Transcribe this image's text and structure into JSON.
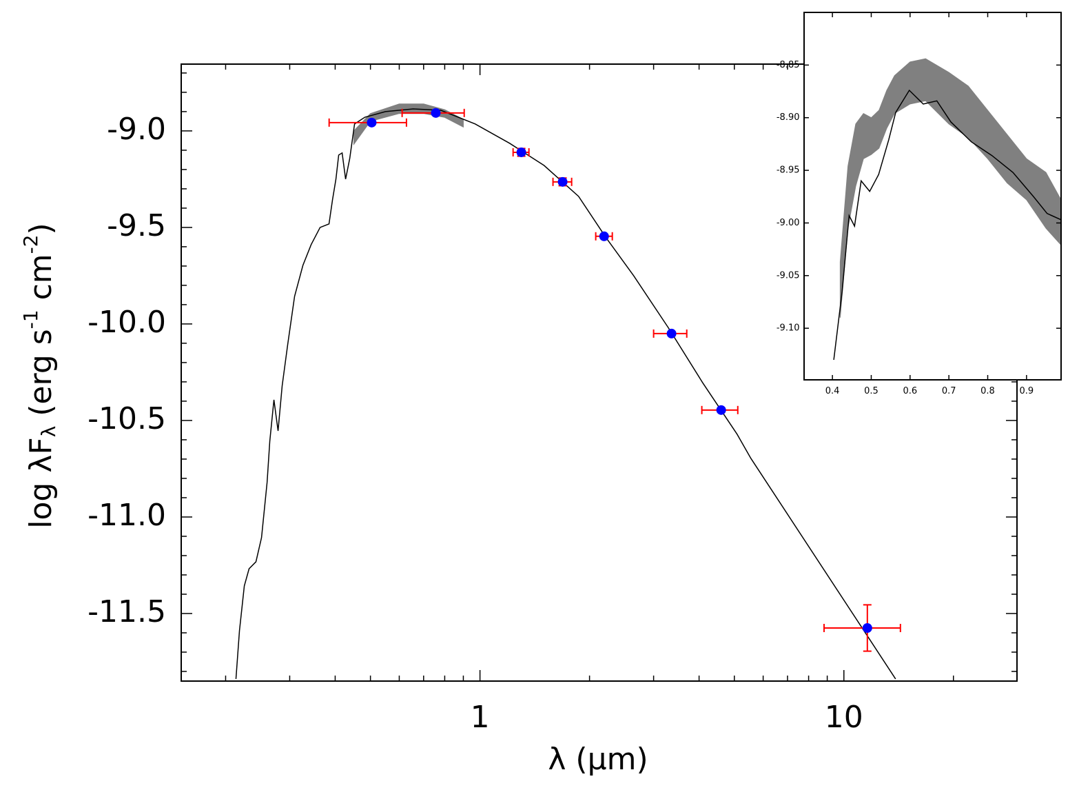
{
  "chart_data": [
    {
      "type": "scatter",
      "xlabel": "λ (μm)",
      "ylabel": [
        "log λF",
        "λ",
        " (erg s",
        "-1",
        " cm",
        "-2",
        ")"
      ],
      "log_x": true,
      "xlim": [
        0.151,
        29.9
      ],
      "ylim": [
        -11.85,
        -8.654
      ],
      "xticks": [
        1,
        10
      ],
      "xminorticks": [
        0.2,
        0.3,
        0.4,
        0.5,
        0.6,
        0.7,
        0.8,
        0.9,
        2,
        3,
        4,
        5,
        6,
        7,
        8,
        9,
        20
      ],
      "yticks": [
        {
          "value": -9,
          "label": "-9.0"
        },
        -9.5,
        {
          "value": -10,
          "label": "-10.0"
        },
        -10.5,
        {
          "value": -11,
          "label": "-11.0"
        },
        -11.5
      ],
      "yminorticks": [
        -8.7,
        -8.8,
        -8.9,
        -9.1,
        -9.2,
        -9.3,
        -9.4,
        -9.6,
        -9.7,
        -9.8,
        -9.9,
        -10.1,
        -10.2,
        -10.3,
        -10.4,
        -10.6,
        -10.7,
        -10.8,
        -10.9,
        -11.1,
        -11.2,
        -11.3,
        -11.4,
        -11.6,
        -11.7,
        -11.8
      ],
      "band": {
        "color": "#808080",
        "x": [
          0.45,
          0.5,
          0.6,
          0.7,
          0.8,
          0.9
        ],
        "lower": [
          -9.07,
          -8.95,
          -8.91,
          -8.91,
          -8.93,
          -8.98
        ],
        "upper": [
          -9.0,
          -8.91,
          -8.86,
          -8.86,
          -8.89,
          -8.94
        ]
      },
      "model": {
        "color": "#000000",
        "x": [
          0.2135,
          0.2183,
          0.2251,
          0.232,
          0.2423,
          0.251,
          0.26,
          0.2645,
          0.2715,
          0.2787,
          0.286,
          0.2962,
          0.3094,
          0.3262,
          0.3436,
          0.3636,
          0.3847,
          0.3933,
          0.4019,
          0.409,
          0.418,
          0.4273,
          0.4386,
          0.4522,
          0.4828,
          0.55,
          0.6551,
          0.78,
          0.9699,
          1.206,
          1.5,
          1.866,
          2.222,
          2.644,
          3.289,
          4.09,
          5.087,
          5.55,
          13.87
        ],
        "values": [
          -11.839,
          -11.589,
          -11.357,
          -11.268,
          -11.232,
          -11.107,
          -10.821,
          -10.607,
          -10.393,
          -10.554,
          -10.321,
          -10.107,
          -9.857,
          -9.696,
          -9.589,
          -9.5,
          -9.482,
          -9.357,
          -9.25,
          -9.125,
          -9.114,
          -9.25,
          -9.143,
          -8.964,
          -8.929,
          -8.9,
          -8.886,
          -8.893,
          -8.964,
          -9.064,
          -9.179,
          -9.339,
          -9.554,
          -9.75,
          -10.018,
          -10.304,
          -10.571,
          -10.696,
          -11.839
        ]
      },
      "points": {
        "color": "#0000ff",
        "error_color": "#ff0000",
        "x": [
          0.504,
          0.756,
          1.299,
          1.687,
          2.193,
          3.36,
          4.6,
          11.6
        ],
        "values": [
          -8.957,
          -8.907,
          -9.111,
          -9.264,
          -9.546,
          -10.05,
          -10.446,
          -11.575
        ],
        "xmin": [
          0.385,
          0.611,
          1.233,
          1.587,
          2.08,
          3.0,
          4.07,
          8.82
        ],
        "xmax": [
          0.628,
          0.905,
          1.363,
          1.786,
          2.31,
          3.7,
          5.11,
          14.3
        ],
        "yerr": [
          0.01,
          0.01,
          0.02,
          0.02,
          0.01,
          0.01,
          0.01,
          0.12
        ]
      }
    },
    {
      "type": "line",
      "xlim": [
        0.327,
        0.989
      ],
      "ylim": [
        -9.149,
        -8.8
      ],
      "xticks": [
        0.4,
        0.5,
        0.6,
        0.7,
        0.8,
        0.9
      ],
      "yticks": [
        -8.85,
        {
          "value": -8.9,
          "label": "-8.90"
        },
        -8.95,
        {
          "value": -9,
          "label": "-9.00"
        },
        -9.05,
        {
          "value": -9.1,
          "label": "-9.10"
        }
      ],
      "band": {
        "color": "#808080",
        "x": [
          0.42,
          0.44,
          0.46,
          0.48,
          0.5,
          0.52,
          0.54,
          0.56,
          0.6,
          0.64,
          0.7,
          0.75,
          0.8,
          0.85,
          0.9,
          0.95,
          0.989
        ],
        "lower": [
          -9.09,
          -9.005,
          -8.965,
          -8.939,
          -8.935,
          -8.929,
          -8.91,
          -8.896,
          -8.887,
          -8.884,
          -8.906,
          -8.919,
          -8.939,
          -8.962,
          -8.978,
          -9.005,
          -9.021
        ],
        "upper": [
          -9.037,
          -8.946,
          -8.906,
          -8.896,
          -8.9,
          -8.893,
          -8.874,
          -8.86,
          -8.847,
          -8.844,
          -8.857,
          -8.87,
          -8.893,
          -8.916,
          -8.939,
          -8.952,
          -8.978
        ]
      },
      "model": {
        "color": "#000000",
        "x": [
          0.4035,
          0.425,
          0.443,
          0.457,
          0.474,
          0.496,
          0.519,
          0.545,
          0.563,
          0.598,
          0.634,
          0.669,
          0.705,
          0.758,
          0.811,
          0.865,
          0.918,
          0.953,
          0.989
        ],
        "values": [
          -9.13,
          -9.065,
          -8.993,
          -9.003,
          -8.96,
          -8.97,
          -8.954,
          -8.921,
          -8.895,
          -8.874,
          -8.887,
          -8.884,
          -8.904,
          -8.923,
          -8.936,
          -8.952,
          -8.975,
          -8.991,
          -8.997
        ]
      }
    }
  ]
}
